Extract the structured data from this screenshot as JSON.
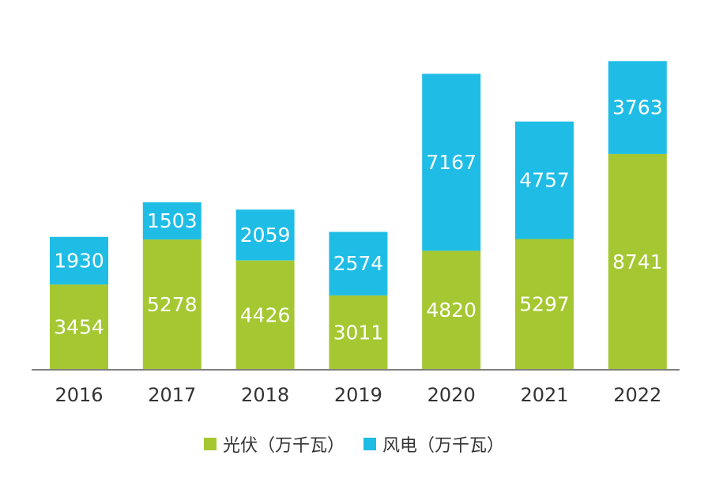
{
  "chart_data": {
    "type": "bar",
    "stacked": true,
    "categories": [
      "2016",
      "2017",
      "2018",
      "2019",
      "2020",
      "2021",
      "2022"
    ],
    "series": [
      {
        "name": "光伏（万千瓦）",
        "color": "#a5c832",
        "values": [
          3454,
          5278,
          4426,
          3011,
          4820,
          5297,
          8741
        ]
      },
      {
        "name": "风电（万千瓦）",
        "color": "#1fbde6",
        "values": [
          1930,
          1503,
          2059,
          2574,
          7167,
          4757,
          3763
        ]
      }
    ],
    "axis_color": "#7f7f7f",
    "grid": false,
    "legend_position": "bottom"
  }
}
